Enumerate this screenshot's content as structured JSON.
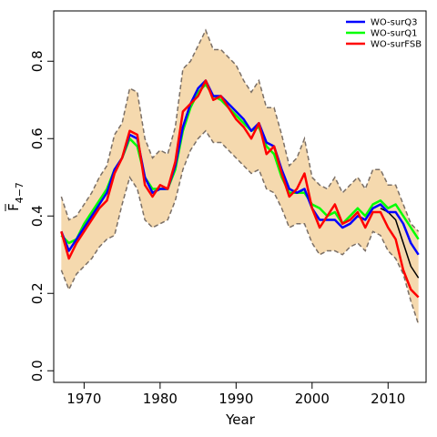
{
  "chart_data": {
    "type": "line",
    "xlabel": "Year",
    "ylabel": "F",
    "ylabel_subscript": "4−7",
    "xlim": [
      1966,
      2015
    ],
    "ylim": [
      -0.03,
      0.93
    ],
    "xticks": [
      1970,
      1980,
      1990,
      2000,
      2010
    ],
    "xtick_labels": [
      "1970",
      "1980",
      "1990",
      "2000",
      "2010"
    ],
    "yticks": [
      0.0,
      0.2,
      0.4,
      0.6,
      0.8
    ],
    "ytick_labels": [
      "0.0",
      "0.2",
      "0.4",
      "0.6",
      "0.8"
    ],
    "legend_position": "top-right",
    "legend_entries": [
      "WO-surQ3",
      "WO-surQ1",
      "WO-surFSB"
    ],
    "band": {
      "fill": "#f5d9ae",
      "edge_color": "#7a6f66",
      "x": [
        1967,
        1968,
        1969,
        1970,
        1971,
        1972,
        1973,
        1974,
        1975,
        1976,
        1977,
        1978,
        1979,
        1980,
        1981,
        1982,
        1983,
        1984,
        1985,
        1986,
        1987,
        1988,
        1989,
        1990,
        1991,
        1992,
        1993,
        1994,
        1995,
        1996,
        1997,
        1998,
        1999,
        2000,
        2001,
        2002,
        2003,
        2004,
        2005,
        2006,
        2007,
        2008,
        2009,
        2010,
        2011,
        2012,
        2013,
        2014
      ],
      "upper": [
        0.45,
        0.39,
        0.4,
        0.43,
        0.46,
        0.5,
        0.53,
        0.61,
        0.64,
        0.73,
        0.72,
        0.6,
        0.55,
        0.57,
        0.56,
        0.63,
        0.78,
        0.8,
        0.84,
        0.88,
        0.83,
        0.83,
        0.81,
        0.79,
        0.75,
        0.72,
        0.75,
        0.68,
        0.68,
        0.61,
        0.53,
        0.55,
        0.6,
        0.5,
        0.48,
        0.47,
        0.5,
        0.46,
        0.48,
        0.5,
        0.47,
        0.52,
        0.52,
        0.48,
        0.48,
        0.43,
        0.38,
        0.36
      ],
      "lower": [
        0.26,
        0.21,
        0.25,
        0.27,
        0.29,
        0.32,
        0.34,
        0.35,
        0.43,
        0.5,
        0.47,
        0.39,
        0.37,
        0.38,
        0.39,
        0.44,
        0.52,
        0.57,
        0.6,
        0.62,
        0.59,
        0.59,
        0.57,
        0.55,
        0.53,
        0.51,
        0.52,
        0.47,
        0.46,
        0.42,
        0.37,
        0.38,
        0.38,
        0.33,
        0.3,
        0.31,
        0.31,
        0.3,
        0.32,
        0.33,
        0.31,
        0.36,
        0.35,
        0.31,
        0.29,
        0.25,
        0.18,
        0.12
      ]
    },
    "series": [
      {
        "name": "WO-surQ3",
        "color": "#0000ff",
        "x": [
          1967,
          1968,
          1969,
          1970,
          1971,
          1972,
          1973,
          1974,
          1975,
          1976,
          1977,
          1978,
          1979,
          1980,
          1981,
          1982,
          1983,
          1984,
          1985,
          1986,
          1987,
          1988,
          1989,
          1990,
          1991,
          1992,
          1993,
          1994,
          1995,
          1996,
          1997,
          1998,
          1999,
          2000,
          2001,
          2002,
          2003,
          2004,
          2005,
          2006,
          2007,
          2008,
          2009,
          2010,
          2011,
          2012,
          2013,
          2014
        ],
        "y": [
          0.36,
          0.31,
          0.34,
          0.37,
          0.4,
          0.43,
          0.46,
          0.52,
          0.55,
          0.61,
          0.6,
          0.5,
          0.46,
          0.47,
          0.47,
          0.53,
          0.63,
          0.69,
          0.73,
          0.75,
          0.71,
          0.71,
          0.69,
          0.67,
          0.65,
          0.62,
          0.64,
          0.59,
          0.58,
          0.52,
          0.47,
          0.46,
          0.47,
          0.42,
          0.39,
          0.39,
          0.39,
          0.37,
          0.38,
          0.4,
          0.39,
          0.42,
          0.43,
          0.41,
          0.41,
          0.38,
          0.33,
          0.3
        ]
      },
      {
        "name": "WO-surQ1",
        "color": "#00ff00",
        "x": [
          1967,
          1968,
          1969,
          1970,
          1971,
          1972,
          1973,
          1974,
          1975,
          1976,
          1977,
          1978,
          1979,
          1980,
          1981,
          1982,
          1983,
          1984,
          1985,
          1986,
          1987,
          1988,
          1989,
          1990,
          1991,
          1992,
          1993,
          1994,
          1995,
          1996,
          1997,
          1998,
          1999,
          2000,
          2001,
          2002,
          2003,
          2004,
          2005,
          2006,
          2007,
          2008,
          2009,
          2010,
          2011,
          2012,
          2013,
          2014
        ],
        "y": [
          0.35,
          0.33,
          0.34,
          0.38,
          0.41,
          0.44,
          0.47,
          0.52,
          0.55,
          0.6,
          0.58,
          0.5,
          0.47,
          0.47,
          0.47,
          0.52,
          0.62,
          0.68,
          0.72,
          0.74,
          0.71,
          0.7,
          0.68,
          0.66,
          0.64,
          0.62,
          0.63,
          0.58,
          0.56,
          0.5,
          0.46,
          0.46,
          0.46,
          0.43,
          0.42,
          0.4,
          0.41,
          0.38,
          0.4,
          0.42,
          0.4,
          0.43,
          0.44,
          0.42,
          0.43,
          0.4,
          0.37,
          0.34
        ]
      },
      {
        "name": "WO-surFSB",
        "color": "#ff0000",
        "x": [
          1967,
          1968,
          1969,
          1970,
          1971,
          1972,
          1973,
          1974,
          1975,
          1976,
          1977,
          1978,
          1979,
          1980,
          1981,
          1982,
          1983,
          1984,
          1985,
          1986,
          1987,
          1988,
          1989,
          1990,
          1991,
          1992,
          1993,
          1994,
          1995,
          1996,
          1997,
          1998,
          1999,
          2000,
          2001,
          2002,
          2003,
          2004,
          2005,
          2006,
          2007,
          2008,
          2009,
          2010,
          2011,
          2012,
          2013,
          2014
        ],
        "y": [
          0.36,
          0.29,
          0.33,
          0.36,
          0.39,
          0.42,
          0.44,
          0.51,
          0.55,
          0.62,
          0.61,
          0.48,
          0.45,
          0.48,
          0.47,
          0.54,
          0.67,
          0.69,
          0.71,
          0.75,
          0.7,
          0.71,
          0.68,
          0.65,
          0.63,
          0.6,
          0.64,
          0.56,
          0.58,
          0.51,
          0.45,
          0.47,
          0.51,
          0.42,
          0.37,
          0.4,
          0.43,
          0.38,
          0.39,
          0.41,
          0.37,
          0.41,
          0.41,
          0.37,
          0.34,
          0.26,
          0.21,
          0.19
        ]
      },
      {
        "name": "",
        "color": "#000000",
        "x": [
          2009,
          2010,
          2011,
          2012,
          2013,
          2014
        ],
        "y": [
          0.42,
          0.41,
          0.39,
          0.33,
          0.27,
          0.24
        ]
      }
    ]
  }
}
